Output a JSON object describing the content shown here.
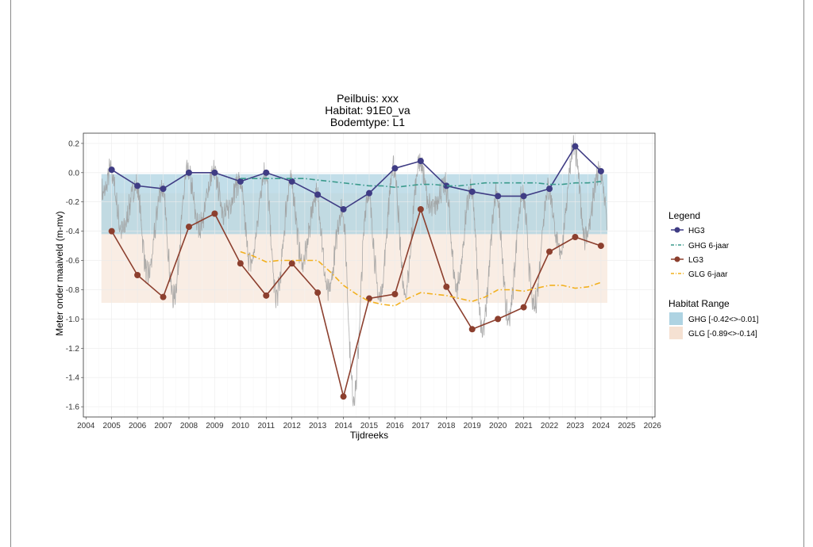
{
  "chart_data": {
    "type": "line",
    "title_lines": [
      "Peilbuis: xxx",
      "Habitat: 91E0_va",
      "Bodemtype: L1"
    ],
    "xlabel": "Tijdreeks",
    "ylabel": "Meter onder maaiveld (m-mv)",
    "xlim": [
      2003.9,
      2026.1
    ],
    "ylim": [
      -1.67,
      0.27
    ],
    "x_ticks": [
      2004,
      2005,
      2006,
      2007,
      2008,
      2009,
      2010,
      2011,
      2012,
      2013,
      2014,
      2015,
      2016,
      2017,
      2018,
      2019,
      2020,
      2021,
      2022,
      2023,
      2024,
      2025,
      2026
    ],
    "y_ticks": [
      0.2,
      0.0,
      -0.2,
      -0.4,
      -0.6,
      -0.8,
      -1.0,
      -1.2,
      -1.4,
      -1.6
    ],
    "y_tick_labels": [
      "0.2",
      "0.0",
      "-0.2",
      "-0.4",
      "-0.6",
      "-0.8",
      "-1.0",
      "-1.2",
      "-1.4",
      "-1.6"
    ],
    "grid": true,
    "legend_position": "right",
    "colors": {
      "hg3": "#3f3c84",
      "ghg": "#3a9a8c",
      "lg3": "#8c3f2e",
      "glg": "#f2b01e",
      "ghg_band": "#aed3e2",
      "glg_band": "#f5e1d2",
      "raw": "#9e9e9e"
    },
    "habitat_ranges": [
      {
        "name": "GHG [-0.42<>-0.01]",
        "ymin": -0.42,
        "ymax": -0.01,
        "xmin": 2004.6,
        "xmax": 2024.25
      },
      {
        "name": "GLG [-0.89<>-0.14]",
        "ymin": -0.89,
        "ymax": -0.14,
        "xmin": 2004.6,
        "xmax": 2024.25
      }
    ],
    "series": [
      {
        "name": "HG3",
        "style": "line-points",
        "x": [
          2005,
          2006,
          2007,
          2008,
          2009,
          2010,
          2011,
          2012,
          2013,
          2014,
          2015,
          2016,
          2017,
          2018,
          2019,
          2020,
          2021,
          2022,
          2023,
          2024
        ],
        "y": [
          0.02,
          -0.09,
          -0.11,
          0.0,
          0.0,
          -0.06,
          0.0,
          -0.06,
          -0.15,
          -0.25,
          -0.14,
          0.03,
          0.08,
          -0.09,
          -0.13,
          -0.16,
          -0.16,
          -0.11,
          0.18,
          0.01
        ]
      },
      {
        "name": "GHG 6-jaar",
        "style": "dashdot",
        "x": [
          2010,
          2010.5,
          2011,
          2011.5,
          2012,
          2012.5,
          2013,
          2013.5,
          2014,
          2014.5,
          2015,
          2015.5,
          2016,
          2016.5,
          2017,
          2017.5,
          2018,
          2018.5,
          2019,
          2019.5,
          2020,
          2020.5,
          2021,
          2021.5,
          2022,
          2022.5,
          2023,
          2023.5,
          2024
        ],
        "y": [
          -0.04,
          -0.04,
          -0.04,
          -0.04,
          -0.04,
          -0.04,
          -0.05,
          -0.06,
          -0.07,
          -0.08,
          -0.09,
          -0.09,
          -0.1,
          -0.09,
          -0.08,
          -0.08,
          -0.09,
          -0.09,
          -0.08,
          -0.07,
          -0.07,
          -0.07,
          -0.07,
          -0.07,
          -0.08,
          -0.08,
          -0.07,
          -0.07,
          -0.06
        ]
      },
      {
        "name": "LG3",
        "style": "line-points",
        "x": [
          2005,
          2006,
          2007,
          2008,
          2009,
          2010,
          2011,
          2012,
          2013,
          2014,
          2015,
          2016,
          2017,
          2018,
          2019,
          2020,
          2021,
          2022,
          2023,
          2024
        ],
        "y": [
          -0.4,
          -0.7,
          -0.85,
          -0.37,
          -0.28,
          -0.62,
          -0.84,
          -0.62,
          -0.82,
          -1.53,
          -0.86,
          -0.83,
          -0.25,
          -0.78,
          -1.07,
          -1.0,
          -0.92,
          -0.54,
          -0.44,
          -0.5
        ]
      },
      {
        "name": "GLG 6-jaar",
        "style": "dashdot",
        "x": [
          2010,
          2010.5,
          2011,
          2011.5,
          2012,
          2012.5,
          2013,
          2013.5,
          2014,
          2014.5,
          2015,
          2015.5,
          2016,
          2016.5,
          2017,
          2017.5,
          2018,
          2018.5,
          2019,
          2019.5,
          2020,
          2020.5,
          2021,
          2021.5,
          2022,
          2022.5,
          2023,
          2023.5,
          2024
        ],
        "y": [
          -0.54,
          -0.57,
          -0.61,
          -0.6,
          -0.6,
          -0.6,
          -0.6,
          -0.68,
          -0.77,
          -0.83,
          -0.88,
          -0.9,
          -0.91,
          -0.86,
          -0.82,
          -0.83,
          -0.84,
          -0.86,
          -0.88,
          -0.85,
          -0.8,
          -0.8,
          -0.81,
          -0.79,
          -0.77,
          -0.77,
          -0.79,
          -0.78,
          -0.75
        ]
      }
    ],
    "legend": {
      "title": "Legend",
      "entries": [
        "HG3",
        "GHG 6-jaar",
        "LG3",
        "GLG 6-jaar"
      ],
      "range_title": "Habitat Range",
      "range_entries": [
        "GHG [-0.42<>-0.01]",
        "GLG [-0.89<>-0.14]"
      ]
    }
  }
}
